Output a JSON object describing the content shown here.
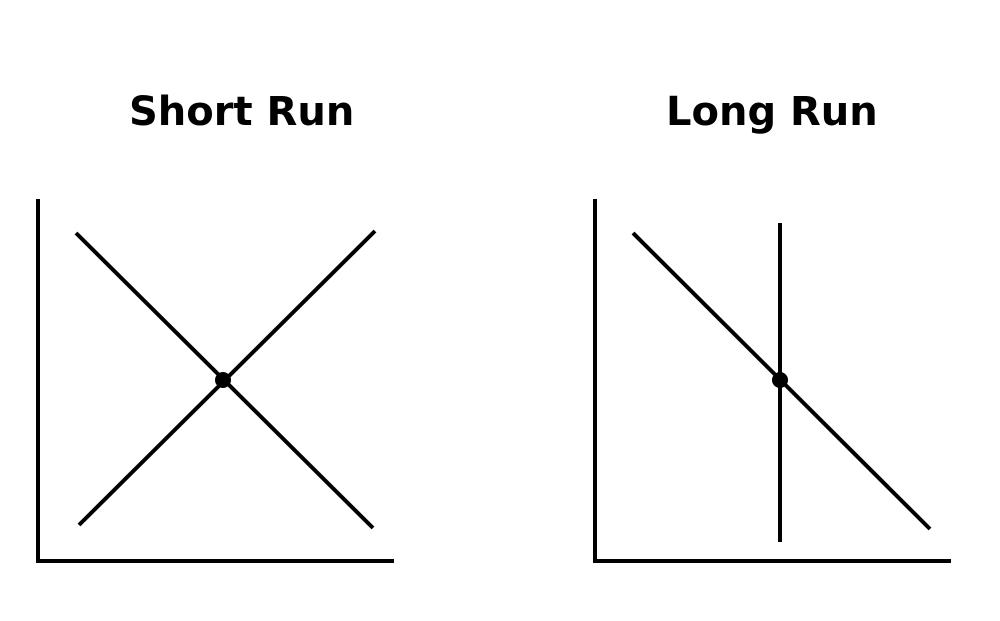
{
  "panels": [
    {
      "title": "Short Run",
      "lines": [
        "demand-curve",
        "supply-curve"
      ],
      "has_equilibrium_point": true
    },
    {
      "title": "Long Run",
      "lines": [
        "demand-curve",
        "vertical-supply-curve"
      ],
      "has_equilibrium_point": true
    }
  ],
  "colors": {
    "ink": "#000000",
    "background": "#ffffff"
  }
}
